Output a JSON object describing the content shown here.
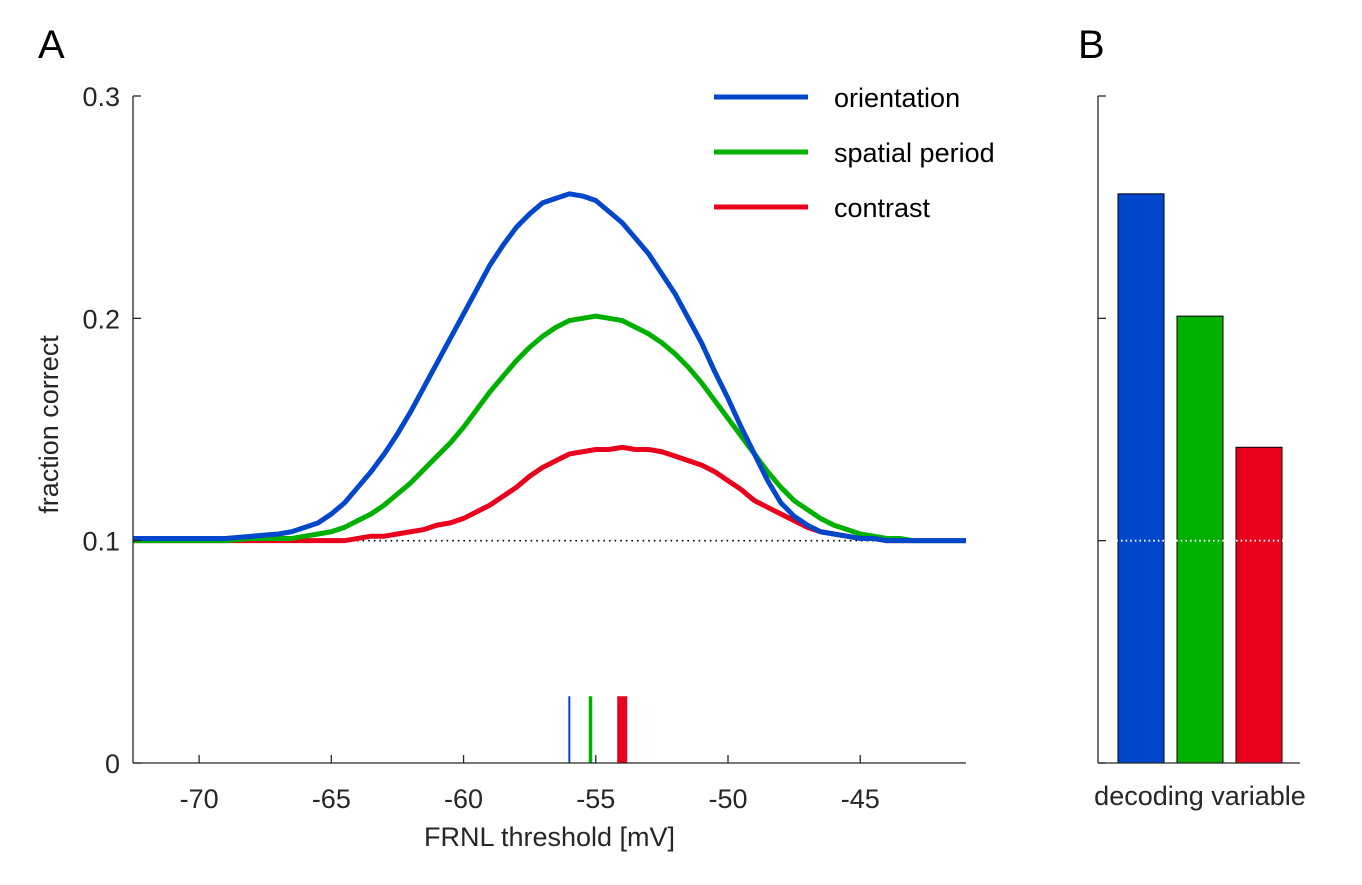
{
  "panels": {
    "a_label": "A",
    "b_label": "B"
  },
  "colors": {
    "orientation": "#0047CC",
    "spatial_period": "#00B000",
    "contrast": "#E8001C",
    "axis": "#262626"
  },
  "chart_data": [
    {
      "type": "line",
      "panel": "A",
      "title": "",
      "xlabel": "FRNL threshold [mV]",
      "ylabel": "fraction correct",
      "xlim": [
        -72.5,
        -41
      ],
      "ylim": [
        0,
        0.3
      ],
      "xticks": [
        -70,
        -65,
        -60,
        -55,
        -50,
        -45
      ],
      "xtick_labels": [
        "-70",
        "-65",
        "-60",
        "-55",
        "-50",
        "-45"
      ],
      "yticks": [
        0,
        0.1,
        0.2,
        0.3
      ],
      "ytick_labels": [
        "0",
        "0.1",
        "0.2",
        "0.3"
      ],
      "grid": false,
      "legend_position": "top-right",
      "chance_level": 0.1,
      "x": [
        -72.5,
        -72,
        -71,
        -70,
        -69,
        -68,
        -67,
        -66.5,
        -66,
        -65.5,
        -65,
        -64.5,
        -64,
        -63.5,
        -63,
        -62.5,
        -62,
        -61.5,
        -61,
        -60.5,
        -60,
        -59.5,
        -59,
        -58.5,
        -58,
        -57.5,
        -57,
        -56.5,
        -56,
        -55.5,
        -55,
        -54.5,
        -54,
        -53.5,
        -53,
        -52.5,
        -52,
        -51.5,
        -51,
        -50.5,
        -50,
        -49.5,
        -49,
        -48.5,
        -48,
        -47.5,
        -47,
        -46.5,
        -46,
        -45.5,
        -45,
        -44.5,
        -44,
        -43.5,
        -43,
        -42,
        -41
      ],
      "series": [
        {
          "name": "orientation",
          "color": "#0047CC",
          "values": [
            0.101,
            0.101,
            0.101,
            0.101,
            0.101,
            0.102,
            0.103,
            0.104,
            0.106,
            0.108,
            0.112,
            0.117,
            0.124,
            0.131,
            0.139,
            0.148,
            0.158,
            0.169,
            0.18,
            0.191,
            0.202,
            0.213,
            0.224,
            0.233,
            0.241,
            0.247,
            0.252,
            0.254,
            0.256,
            0.255,
            0.253,
            0.248,
            0.243,
            0.236,
            0.229,
            0.22,
            0.211,
            0.2,
            0.189,
            0.176,
            0.164,
            0.151,
            0.139,
            0.127,
            0.117,
            0.111,
            0.107,
            0.104,
            0.103,
            0.102,
            0.101,
            0.101,
            0.1,
            0.1,
            0.1,
            0.1,
            0.1
          ]
        },
        {
          "name": "spatial period",
          "color": "#00B000",
          "values": [
            0.1,
            0.1,
            0.1,
            0.1,
            0.1,
            0.101,
            0.101,
            0.101,
            0.102,
            0.103,
            0.104,
            0.106,
            0.109,
            0.112,
            0.116,
            0.121,
            0.126,
            0.132,
            0.138,
            0.144,
            0.151,
            0.159,
            0.167,
            0.174,
            0.181,
            0.187,
            0.192,
            0.196,
            0.199,
            0.2,
            0.201,
            0.2,
            0.199,
            0.196,
            0.193,
            0.189,
            0.184,
            0.178,
            0.171,
            0.163,
            0.155,
            0.147,
            0.139,
            0.131,
            0.124,
            0.118,
            0.114,
            0.11,
            0.107,
            0.105,
            0.103,
            0.102,
            0.101,
            0.101,
            0.1,
            0.1,
            0.1
          ]
        },
        {
          "name": "contrast",
          "color": "#E8001C",
          "values": [
            0.1,
            0.1,
            0.1,
            0.1,
            0.1,
            0.1,
            0.1,
            0.1,
            0.1,
            0.1,
            0.1,
            0.1,
            0.101,
            0.102,
            0.102,
            0.103,
            0.104,
            0.105,
            0.107,
            0.108,
            0.11,
            0.113,
            0.116,
            0.12,
            0.124,
            0.129,
            0.133,
            0.136,
            0.139,
            0.14,
            0.141,
            0.141,
            0.142,
            0.141,
            0.141,
            0.14,
            0.138,
            0.136,
            0.134,
            0.131,
            0.127,
            0.123,
            0.118,
            0.115,
            0.112,
            0.109,
            0.106,
            0.104,
            0.103,
            0.102,
            0.101,
            0.101,
            0.1,
            0.1,
            0.1,
            0.1,
            0.1
          ]
        }
      ],
      "peak_markers": [
        {
          "series": "orientation",
          "x": -56,
          "height": 0.03,
          "width": "thin",
          "color": "#0047CC"
        },
        {
          "series": "spatial period",
          "x": -55.2,
          "height": 0.03,
          "width": "medium",
          "color": "#00B000"
        },
        {
          "series": "contrast",
          "x": -54,
          "height": 0.03,
          "width": "thick",
          "color": "#E8001C"
        }
      ]
    },
    {
      "type": "bar",
      "panel": "B",
      "title": "",
      "xlabel": "decoding variable",
      "ylabel": "",
      "ylim": [
        0,
        0.3
      ],
      "yticks": [
        0,
        0.1,
        0.2,
        0.3
      ],
      "grid": false,
      "chance_level": 0.1,
      "categories": [
        "orientation",
        "spatial period",
        "contrast"
      ],
      "values": [
        0.256,
        0.201,
        0.142
      ],
      "colors": [
        "#0047CC",
        "#00B000",
        "#E8001C"
      ]
    }
  ]
}
